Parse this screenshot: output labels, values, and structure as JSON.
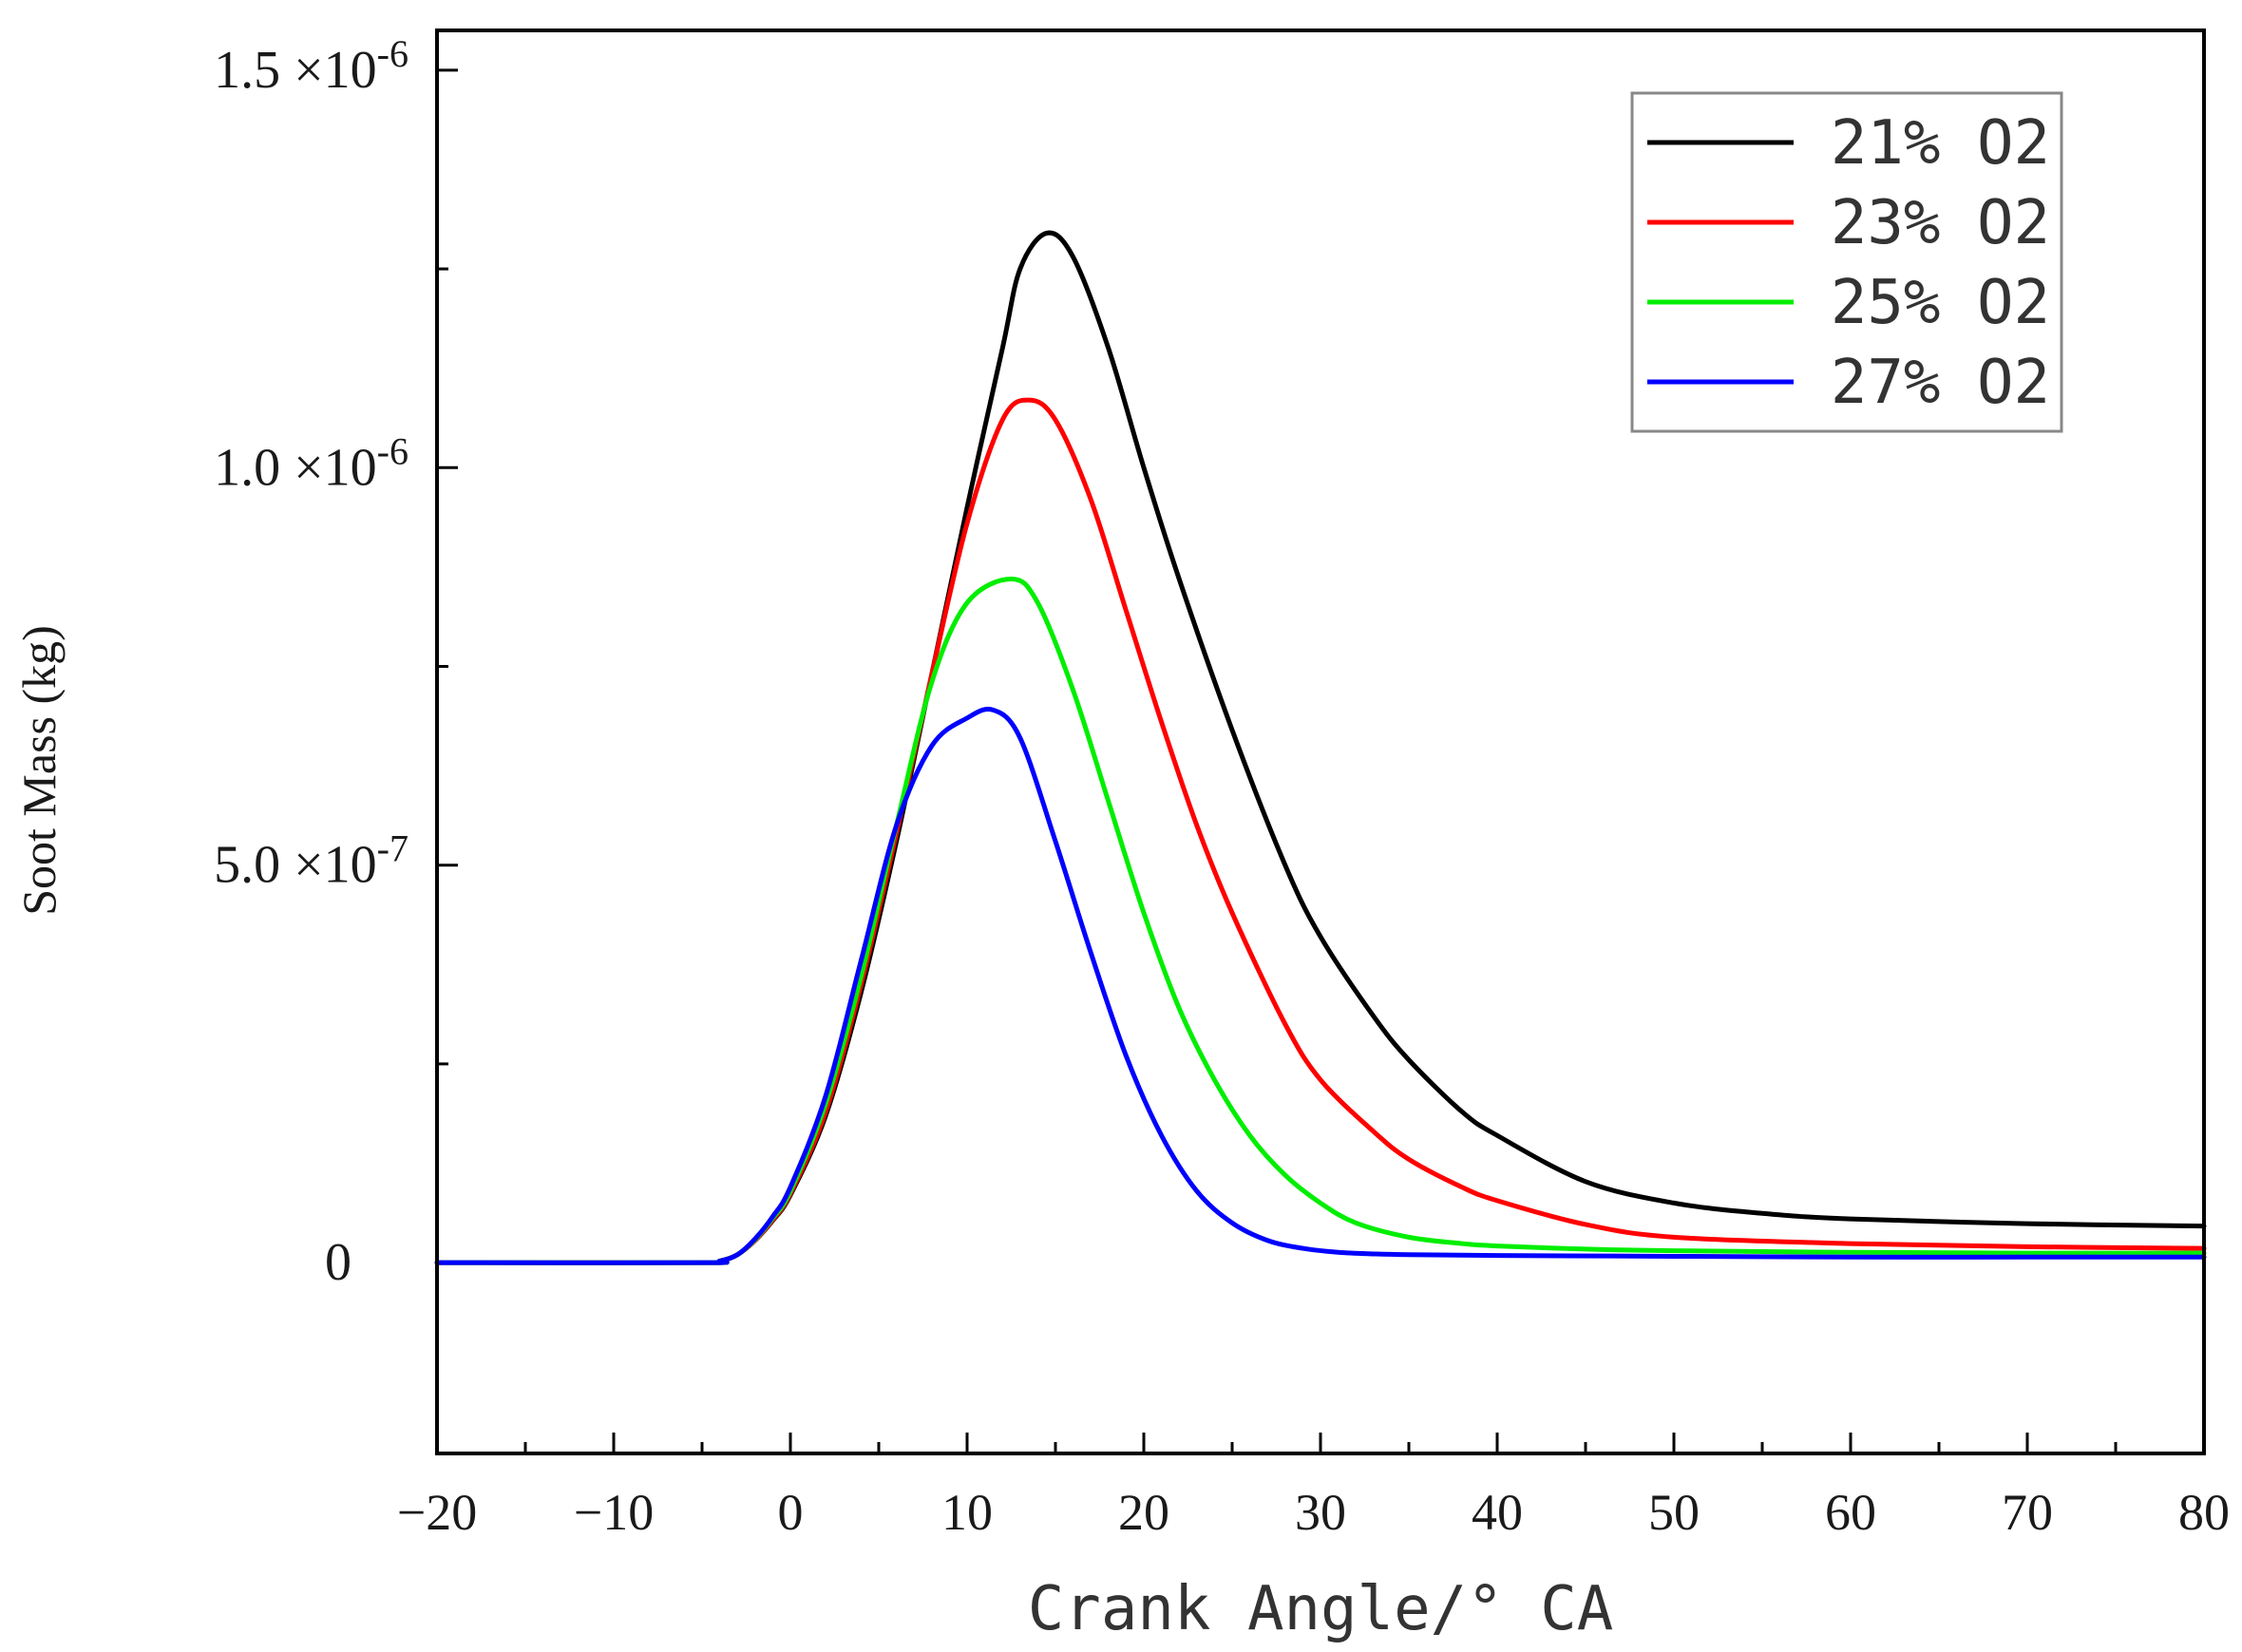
{
  "chart_data": {
    "type": "line",
    "xlabel": "Crank Angle/° CA",
    "ylabel": "Soot Mass (kg)",
    "xlim": [
      -20,
      80
    ],
    "ylim": [
      -2.4e-07,
      1.55e-06
    ],
    "x_ticks": [
      -20,
      -10,
      0,
      10,
      20,
      30,
      40,
      50,
      60,
      70,
      80
    ],
    "x_tick_labels": [
      "−20",
      "−10",
      "0",
      "10",
      "20",
      "30",
      "40",
      "50",
      "60",
      "70",
      "80"
    ],
    "y_ticks": [
      {
        "value": 0,
        "mantissa": "0",
        "exponent": ""
      },
      {
        "value": 5e-07,
        "mantissa": "5.0 ×10",
        "exponent": "-7"
      },
      {
        "value": 1e-06,
        "mantissa": "1.0 ×10",
        "exponent": "-6"
      },
      {
        "value": 1.5e-06,
        "mantissa": "1.5 ×10",
        "exponent": "-6"
      }
    ],
    "y_minor_ticks": [
      2.5e-07,
      7.5e-07,
      1.25e-06
    ],
    "legend_position": "top-right",
    "grid": false,
    "series": [
      {
        "name": "21% O2",
        "color": "#000000",
        "x": [
          -20,
          -5,
          -4,
          -3,
          -2,
          -1,
          0,
          2,
          4,
          6,
          8,
          10,
          12,
          13,
          14.5,
          16,
          18,
          20,
          22,
          25,
          28,
          30,
          33,
          35,
          38,
          40,
          45,
          50,
          55,
          60,
          70,
          80
        ],
        "y": [
          0,
          0,
          2e-09,
          1e-08,
          2.8e-08,
          5.3e-08,
          8.5e-08,
          1.85e-07,
          3.4e-07,
          5.3e-07,
          7.4e-07,
          9.5e-07,
          1.15e-06,
          1.25e-06,
          1.295e-06,
          1.265e-06,
          1.15e-06,
          1e-06,
          8.6e-07,
          6.7e-07,
          5e-07,
          4.1e-07,
          3.1e-07,
          2.55e-07,
          1.9e-07,
          1.6e-07,
          1.02e-07,
          7.5e-08,
          6.2e-08,
          5.5e-08,
          4.9e-08,
          4.6e-08
        ]
      },
      {
        "name": "23% O2",
        "color": "#ff0000",
        "x": [
          -20,
          -5,
          -4,
          -3,
          -2,
          -1,
          0,
          2,
          4,
          6,
          8,
          10,
          12,
          13.5,
          15,
          17,
          19,
          21,
          23,
          25,
          28,
          30,
          33,
          35,
          38,
          40,
          45,
          50,
          60,
          70,
          80
        ],
        "y": [
          0,
          0,
          2e-09,
          1e-08,
          2.8e-08,
          5.4e-08,
          8.7e-08,
          1.9e-07,
          3.5e-07,
          5.4e-07,
          7.4e-07,
          9.3e-07,
          1.06e-06,
          1.085e-06,
          1.06e-06,
          9.6e-07,
          8.2e-07,
          6.8e-07,
          5.5e-07,
          4.4e-07,
          3e-07,
          2.3e-07,
          1.65e-07,
          1.3e-07,
          9.5e-08,
          7.8e-08,
          4.8e-08,
          3.2e-08,
          2.4e-08,
          2e-08,
          1.8e-08
        ]
      },
      {
        "name": "25% O2",
        "color": "#00ee00",
        "x": [
          -20,
          -5,
          -4,
          -3,
          -2,
          -1,
          0,
          2,
          4,
          6,
          8,
          10,
          12.5,
          14,
          16,
          18,
          20,
          22,
          24,
          26,
          28,
          30,
          32,
          35,
          38,
          40,
          45,
          50,
          60,
          70,
          80
        ],
        "y": [
          0,
          0,
          2e-09,
          1e-08,
          2.9e-08,
          5.6e-08,
          9e-08,
          2e-07,
          3.6e-07,
          5.5e-07,
          7.3e-07,
          8.3e-07,
          8.6e-07,
          8.3e-07,
          7.2e-07,
          5.8e-07,
          4.4e-07,
          3.2e-07,
          2.3e-07,
          1.6e-07,
          1.1e-07,
          7.5e-08,
          5e-08,
          3.2e-08,
          2.4e-08,
          2.1e-08,
          1.7e-08,
          1.5e-08,
          1.3e-08,
          1.2e-08,
          1.2e-08
        ]
      },
      {
        "name": "27% O2",
        "color": "#0000ff",
        "x": [
          -20,
          -5,
          -4,
          -3,
          -2,
          -1,
          0,
          2,
          4,
          6,
          8,
          10,
          11.5,
          13,
          15,
          17,
          19,
          21,
          23,
          25,
          27,
          29,
          31,
          33,
          35,
          40,
          50,
          60,
          70,
          80
        ],
        "y": [
          0,
          0,
          2e-09,
          1e-08,
          3e-08,
          5.8e-08,
          9.5e-08,
          2.1e-07,
          3.8e-07,
          5.5e-07,
          6.5e-07,
          6.85e-07,
          6.95e-07,
          6.6e-07,
          5.3e-07,
          3.9e-07,
          2.6e-07,
          1.6e-07,
          9e-08,
          5e-08,
          2.8e-08,
          1.8e-08,
          1.3e-08,
          1.1e-08,
          1e-08,
          9e-09,
          8e-09,
          7e-09,
          7e-09,
          7e-09
        ]
      }
    ]
  }
}
